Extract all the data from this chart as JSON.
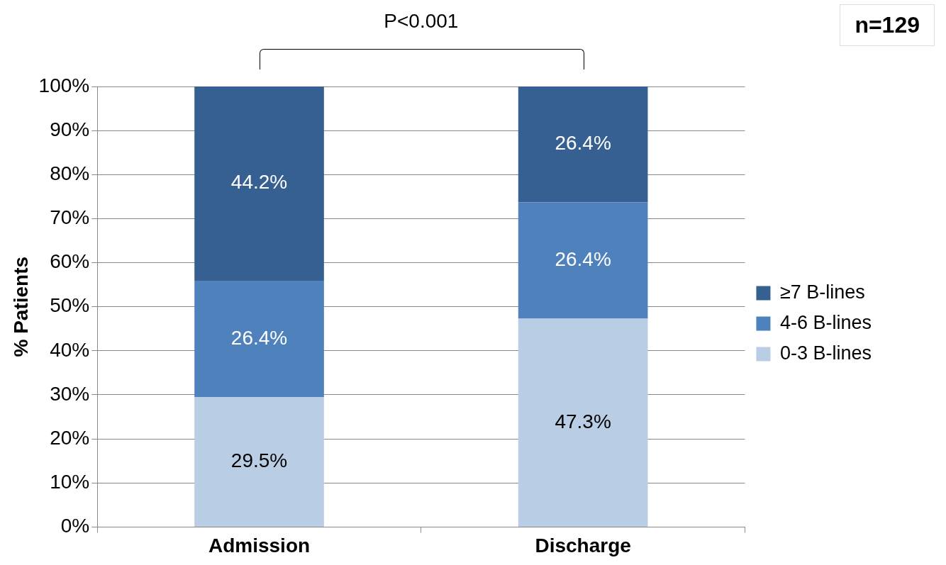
{
  "chart_data": {
    "type": "bar",
    "stacked": true,
    "categories": [
      "Admission",
      "Discharge"
    ],
    "ylabel": "% Patients",
    "series": [
      {
        "name": "0-3 B-lines",
        "color": "#b9cde5",
        "values": [
          29.5,
          47.3
        ],
        "value_labels": [
          "29.5%",
          "47.3%"
        ]
      },
      {
        "name": "4-6 B-lines",
        "color": "#4f81bd",
        "values": [
          26.4,
          26.4
        ],
        "value_labels": [
          "26.4%",
          "26.4%"
        ]
      },
      {
        "name": "≥7 B-lines",
        "color": "#376092",
        "values": [
          44.2,
          26.4
        ],
        "value_labels": [
          "44.2%",
          "26.4%"
        ]
      }
    ],
    "ylim": [
      0,
      100
    ],
    "yticks": [
      {
        "value": 0,
        "label": "0%"
      },
      {
        "value": 10,
        "label": "10%"
      },
      {
        "value": 20,
        "label": "20%"
      },
      {
        "value": 30,
        "label": "30%"
      },
      {
        "value": 40,
        "label": "40%"
      },
      {
        "value": 50,
        "label": "50%"
      },
      {
        "value": 60,
        "label": "60%"
      },
      {
        "value": 70,
        "label": "70%"
      },
      {
        "value": 80,
        "label": "80%"
      },
      {
        "value": 90,
        "label": "90%"
      },
      {
        "value": 100,
        "label": "100%"
      }
    ],
    "grid": "y",
    "legend": "right",
    "annotations": [
      "P<0.001",
      "n=129"
    ]
  }
}
